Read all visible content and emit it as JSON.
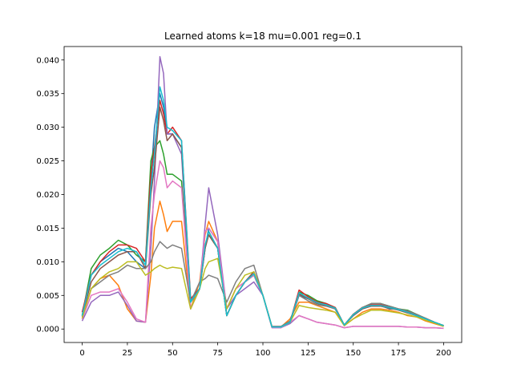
{
  "chart_data": {
    "type": "line",
    "title": "Learned atoms k=18 mu=0.001 reg=0.1",
    "xlabel": "",
    "ylabel": "",
    "xlim": [
      -10,
      210
    ],
    "ylim": [
      -0.002,
      0.042
    ],
    "xticks": [
      0,
      25,
      50,
      75,
      100,
      125,
      150,
      175,
      200
    ],
    "xtick_labels": [
      "0",
      "25",
      "50",
      "75",
      "100",
      "125",
      "150",
      "175",
      "200"
    ],
    "yticks": [
      0.0,
      0.005,
      0.01,
      0.015,
      0.02,
      0.025,
      0.03,
      0.035,
      0.04
    ],
    "ytick_labels": [
      "0.000",
      "0.005",
      "0.010",
      "0.015",
      "0.020",
      "0.025",
      "0.030",
      "0.035",
      "0.040"
    ],
    "grid": false,
    "series": [
      {
        "color": "#1f77b4",
        "x": [
          0,
          5,
          10,
          15,
          20,
          25,
          30,
          35,
          38,
          40,
          43,
          45,
          47,
          50,
          55,
          60,
          65,
          68,
          70,
          75,
          80,
          85,
          90,
          95,
          100,
          105,
          110,
          115,
          120,
          125,
          130,
          135,
          140,
          145,
          150,
          155,
          160,
          165,
          170,
          175,
          180,
          185,
          190,
          195,
          200
        ],
        "values": [
          0.002,
          0.008,
          0.01,
          0.011,
          0.012,
          0.0115,
          0.01,
          0.009,
          0.022,
          0.03,
          0.035,
          0.033,
          0.029,
          0.029,
          0.027,
          0.004,
          0.006,
          0.012,
          0.015,
          0.013,
          0.002,
          0.005,
          0.007,
          0.008,
          0.005,
          0.0003,
          0.0003,
          0.001,
          0.005,
          0.0045,
          0.004,
          0.0035,
          0.003,
          0.0006,
          0.002,
          0.003,
          0.0035,
          0.0035,
          0.003,
          0.003,
          0.0025,
          0.002,
          0.0015,
          0.001,
          0.0005
        ]
      },
      {
        "color": "#ff7f0e",
        "x": [
          0,
          5,
          10,
          15,
          20,
          25,
          30,
          35,
          38,
          40,
          43,
          45,
          47,
          50,
          55,
          60,
          65,
          68,
          70,
          75,
          80,
          85,
          90,
          95,
          100,
          105,
          110,
          115,
          120,
          125,
          130,
          135,
          140,
          145,
          150,
          155,
          160,
          165,
          170,
          175,
          180,
          185,
          190,
          195,
          200
        ],
        "values": [
          0.0015,
          0.006,
          0.0075,
          0.008,
          0.0065,
          0.003,
          0.0012,
          0.001,
          0.008,
          0.015,
          0.019,
          0.017,
          0.0145,
          0.016,
          0.016,
          0.003,
          0.007,
          0.014,
          0.016,
          0.013,
          0.003,
          0.006,
          0.007,
          0.008,
          0.005,
          0.0003,
          0.0003,
          0.0015,
          0.004,
          0.004,
          0.0035,
          0.003,
          0.0025,
          0.0005,
          0.0015,
          0.0025,
          0.003,
          0.003,
          0.0028,
          0.0025,
          0.002,
          0.0018,
          0.0012,
          0.0008,
          0.0004
        ]
      },
      {
        "color": "#2ca02c",
        "x": [
          0,
          5,
          10,
          15,
          20,
          25,
          30,
          35,
          38,
          40,
          43,
          45,
          47,
          50,
          55,
          60,
          65,
          68,
          70,
          75,
          80,
          85,
          90,
          95,
          100,
          105,
          110,
          115,
          120,
          125,
          130,
          135,
          140,
          145,
          150,
          155,
          160,
          165,
          170,
          175,
          180,
          185,
          190,
          195,
          200
        ],
        "values": [
          0.002,
          0.009,
          0.011,
          0.012,
          0.0132,
          0.0125,
          0.011,
          0.01,
          0.025,
          0.027,
          0.028,
          0.026,
          0.023,
          0.023,
          0.022,
          0.004,
          0.006,
          0.0125,
          0.014,
          0.012,
          0.002,
          0.005,
          0.007,
          0.008,
          0.005,
          0.0003,
          0.0003,
          0.001,
          0.0055,
          0.005,
          0.0042,
          0.0038,
          0.0032,
          0.0006,
          0.0022,
          0.0032,
          0.0038,
          0.0038,
          0.0034,
          0.003,
          0.0028,
          0.0022,
          0.0016,
          0.001,
          0.0005
        ]
      },
      {
        "color": "#d62728",
        "x": [
          0,
          5,
          10,
          15,
          20,
          25,
          30,
          35,
          38,
          40,
          43,
          45,
          47,
          50,
          55,
          60,
          65,
          68,
          70,
          75,
          80,
          85,
          90,
          95,
          100,
          105,
          110,
          115,
          120,
          125,
          130,
          135,
          140,
          145,
          150,
          155,
          160,
          165,
          170,
          175,
          180,
          185,
          190,
          195,
          200
        ],
        "values": [
          0.0025,
          0.008,
          0.01,
          0.0115,
          0.0125,
          0.0125,
          0.012,
          0.01,
          0.023,
          0.027,
          0.034,
          0.032,
          0.029,
          0.03,
          0.028,
          0.0045,
          0.006,
          0.012,
          0.0145,
          0.012,
          0.002,
          0.005,
          0.007,
          0.0085,
          0.005,
          0.0003,
          0.0003,
          0.001,
          0.0058,
          0.0048,
          0.004,
          0.0038,
          0.0032,
          0.0006,
          0.0022,
          0.0032,
          0.0036,
          0.0036,
          0.0033,
          0.003,
          0.0026,
          0.0021,
          0.0016,
          0.001,
          0.0005
        ]
      },
      {
        "color": "#9467bd",
        "x": [
          0,
          5,
          10,
          15,
          20,
          25,
          30,
          35,
          38,
          40,
          43,
          45,
          47,
          50,
          55,
          60,
          65,
          68,
          70,
          75,
          80,
          85,
          90,
          95,
          100,
          105,
          110,
          115,
          120,
          125,
          130,
          135,
          140,
          145,
          150,
          155,
          160,
          165,
          170,
          175,
          180,
          185,
          190,
          195,
          200
        ],
        "values": [
          0.0012,
          0.004,
          0.005,
          0.005,
          0.0055,
          0.0035,
          0.0012,
          0.001,
          0.012,
          0.022,
          0.0405,
          0.038,
          0.029,
          0.029,
          0.026,
          0.003,
          0.006,
          0.0155,
          0.021,
          0.014,
          0.003,
          0.005,
          0.006,
          0.007,
          0.005,
          0.0002,
          0.0002,
          0.0008,
          0.002,
          0.0015,
          0.001,
          0.0008,
          0.0006,
          0.0002,
          0.0004,
          0.0004,
          0.0004,
          0.0004,
          0.0004,
          0.0004,
          0.0003,
          0.0003,
          0.0002,
          0.0002,
          0.0001
        ]
      },
      {
        "color": "#8c564b",
        "x": [
          0,
          5,
          10,
          15,
          20,
          25,
          30,
          35,
          38,
          40,
          43,
          45,
          47,
          50,
          55,
          60,
          65,
          68,
          70,
          75,
          80,
          85,
          90,
          95,
          100,
          105,
          110,
          115,
          120,
          125,
          130,
          135,
          140,
          145,
          150,
          155,
          160,
          165,
          170,
          175,
          180,
          185,
          190,
          195,
          200
        ],
        "values": [
          0.002,
          0.007,
          0.009,
          0.01,
          0.011,
          0.0115,
          0.0115,
          0.009,
          0.02,
          0.024,
          0.033,
          0.031,
          0.028,
          0.029,
          0.027,
          0.004,
          0.006,
          0.012,
          0.014,
          0.012,
          0.002,
          0.005,
          0.007,
          0.0085,
          0.005,
          0.0003,
          0.0003,
          0.001,
          0.0052,
          0.0045,
          0.0038,
          0.0035,
          0.003,
          0.0006,
          0.002,
          0.003,
          0.0034,
          0.0034,
          0.0031,
          0.0028,
          0.0024,
          0.002,
          0.0015,
          0.001,
          0.0005
        ]
      },
      {
        "color": "#e377c2",
        "x": [
          0,
          5,
          10,
          15,
          20,
          25,
          30,
          35,
          38,
          40,
          43,
          45,
          47,
          50,
          55,
          60,
          65,
          68,
          70,
          75,
          80,
          85,
          90,
          95,
          100,
          105,
          110,
          115,
          120,
          125,
          130,
          135,
          140,
          145,
          150,
          155,
          160,
          165,
          170,
          175,
          180,
          185,
          190,
          195,
          200
        ],
        "values": [
          0.0015,
          0.005,
          0.0055,
          0.0055,
          0.006,
          0.004,
          0.0015,
          0.001,
          0.015,
          0.02,
          0.025,
          0.024,
          0.021,
          0.022,
          0.021,
          0.003,
          0.006,
          0.0145,
          0.015,
          0.013,
          0.003,
          0.006,
          0.007,
          0.008,
          0.005,
          0.0002,
          0.0002,
          0.001,
          0.002,
          0.0015,
          0.001,
          0.0008,
          0.0006,
          0.0002,
          0.0004,
          0.0004,
          0.0004,
          0.0004,
          0.0004,
          0.0004,
          0.0003,
          0.0003,
          0.0002,
          0.0002,
          0.0001
        ]
      },
      {
        "color": "#7f7f7f",
        "x": [
          0,
          5,
          10,
          15,
          20,
          25,
          30,
          35,
          38,
          40,
          43,
          45,
          47,
          50,
          55,
          60,
          65,
          68,
          70,
          75,
          80,
          85,
          90,
          95,
          100,
          105,
          110,
          115,
          120,
          125,
          130,
          135,
          140,
          145,
          150,
          155,
          160,
          165,
          170,
          175,
          180,
          185,
          190,
          195,
          200
        ],
        "values": [
          0.0018,
          0.006,
          0.007,
          0.008,
          0.0085,
          0.0095,
          0.009,
          0.009,
          0.01,
          0.0115,
          0.013,
          0.0125,
          0.012,
          0.0125,
          0.012,
          0.004,
          0.007,
          0.0075,
          0.008,
          0.0075,
          0.004,
          0.007,
          0.009,
          0.0095,
          0.005,
          0.0004,
          0.0004,
          0.0012,
          0.005,
          0.0042,
          0.0036,
          0.0034,
          0.003,
          0.0006,
          0.0022,
          0.0032,
          0.0038,
          0.0038,
          0.0034,
          0.003,
          0.0027,
          0.0022,
          0.0016,
          0.001,
          0.0005
        ]
      },
      {
        "color": "#bcbd22",
        "x": [
          0,
          5,
          10,
          15,
          20,
          25,
          30,
          35,
          38,
          40,
          43,
          45,
          47,
          50,
          55,
          60,
          65,
          68,
          70,
          75,
          80,
          85,
          90,
          95,
          100,
          105,
          110,
          115,
          120,
          125,
          130,
          135,
          140,
          145,
          150,
          155,
          160,
          165,
          170,
          175,
          180,
          185,
          190,
          195,
          200
        ],
        "values": [
          0.0016,
          0.006,
          0.0075,
          0.0085,
          0.009,
          0.01,
          0.01,
          0.008,
          0.0085,
          0.009,
          0.0095,
          0.0092,
          0.009,
          0.0092,
          0.009,
          0.003,
          0.006,
          0.009,
          0.01,
          0.0105,
          0.003,
          0.006,
          0.008,
          0.0085,
          0.005,
          0.0003,
          0.0003,
          0.001,
          0.0035,
          0.0032,
          0.003,
          0.0028,
          0.0025,
          0.0005,
          0.0015,
          0.0022,
          0.0028,
          0.0028,
          0.0026,
          0.0024,
          0.0021,
          0.0018,
          0.0013,
          0.0009,
          0.0004
        ]
      },
      {
        "color": "#17becf",
        "x": [
          0,
          5,
          10,
          15,
          20,
          25,
          30,
          35,
          38,
          40,
          43,
          45,
          47,
          50,
          55,
          60,
          65,
          68,
          70,
          75,
          80,
          85,
          90,
          95,
          100,
          105,
          110,
          115,
          120,
          125,
          130,
          135,
          140,
          145,
          150,
          155,
          160,
          165,
          170,
          175,
          180,
          185,
          190,
          195,
          200
        ],
        "values": [
          0.002,
          0.008,
          0.0095,
          0.0105,
          0.0115,
          0.012,
          0.0115,
          0.0095,
          0.021,
          0.026,
          0.036,
          0.034,
          0.03,
          0.0295,
          0.028,
          0.004,
          0.006,
          0.0125,
          0.0145,
          0.012,
          0.002,
          0.005,
          0.007,
          0.0082,
          0.005,
          0.0003,
          0.0003,
          0.001,
          0.0054,
          0.0046,
          0.0039,
          0.0036,
          0.0031,
          0.0006,
          0.0021,
          0.0031,
          0.0035,
          0.0035,
          0.0032,
          0.0029,
          0.0025,
          0.002,
          0.0015,
          0.001,
          0.0005
        ]
      }
    ]
  }
}
